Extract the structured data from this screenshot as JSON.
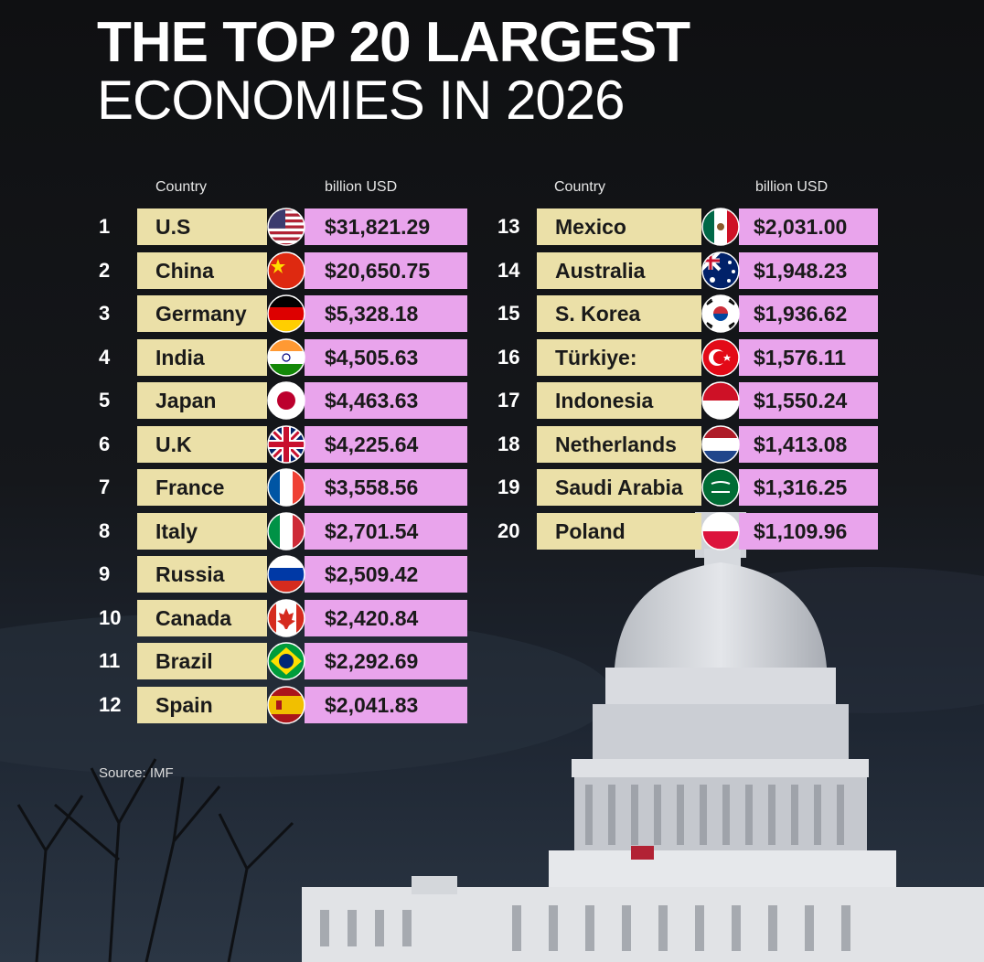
{
  "title_line1": "THE TOP 20 LARGEST",
  "title_line2": "ECONOMIES IN 2026",
  "column_headers": {
    "country": "Country",
    "value": "billion USD"
  },
  "source": "Source: IMF",
  "colors": {
    "name_cell": "#ebe0a8",
    "value_cell": "#e9a4ec",
    "background": "#111214"
  },
  "chart_data": {
    "type": "table",
    "title": "THE TOP 20 LARGEST ECONOMIES IN 2026",
    "columns": [
      "Country",
      "billion USD"
    ],
    "rows": [
      {
        "rank": "1",
        "country": "U.S",
        "value": "$31,821.29",
        "flag": "usa-flag-icon"
      },
      {
        "rank": "2",
        "country": "China",
        "value": "$20,650.75",
        "flag": "china-flag-icon"
      },
      {
        "rank": "3",
        "country": "Germany",
        "value": "$5,328.18",
        "flag": "germany-flag-icon"
      },
      {
        "rank": "4",
        "country": "India",
        "value": "$4,505.63",
        "flag": "india-flag-icon"
      },
      {
        "rank": "5",
        "country": "Japan",
        "value": "$4,463.63",
        "flag": "japan-flag-icon"
      },
      {
        "rank": "6",
        "country": "U.K",
        "value": "$4,225.64",
        "flag": "uk-flag-icon"
      },
      {
        "rank": "7",
        "country": "France",
        "value": "$3,558.56",
        "flag": "france-flag-icon"
      },
      {
        "rank": "8",
        "country": "Italy",
        "value": "$2,701.54",
        "flag": "italy-flag-icon"
      },
      {
        "rank": "9",
        "country": "Russia",
        "value": "$2,509.42",
        "flag": "russia-flag-icon"
      },
      {
        "rank": "10",
        "country": "Canada",
        "value": "$2,420.84",
        "flag": "canada-flag-icon"
      },
      {
        "rank": "11",
        "country": "Brazil",
        "value": "$2,292.69",
        "flag": "brazil-flag-icon"
      },
      {
        "rank": "12",
        "country": "Spain",
        "value": "$2,041.83",
        "flag": "spain-flag-icon"
      },
      {
        "rank": "13",
        "country": "Mexico",
        "value": "$2,031.00",
        "flag": "mexico-flag-icon"
      },
      {
        "rank": "14",
        "country": "Australia",
        "value": "$1,948.23",
        "flag": "australia-flag-icon"
      },
      {
        "rank": "15",
        "country": "S. Korea",
        "value": "$1,936.62",
        "flag": "south-korea-flag-icon"
      },
      {
        "rank": "16",
        "country": "Türkiye:",
        "value": "$1,576.11",
        "flag": "turkey-flag-icon"
      },
      {
        "rank": "17",
        "country": "Indonesia",
        "value": "$1,550.24",
        "flag": "indonesia-flag-icon"
      },
      {
        "rank": "18",
        "country": "Netherlands",
        "value": "$1,413.08",
        "flag": "netherlands-flag-icon"
      },
      {
        "rank": "19",
        "country": "Saudi Arabia",
        "value": "$1,316.25",
        "flag": "saudi-arabia-flag-icon"
      },
      {
        "rank": "20",
        "country": "Poland",
        "value": "$1,109.96",
        "flag": "poland-flag-icon"
      }
    ]
  }
}
